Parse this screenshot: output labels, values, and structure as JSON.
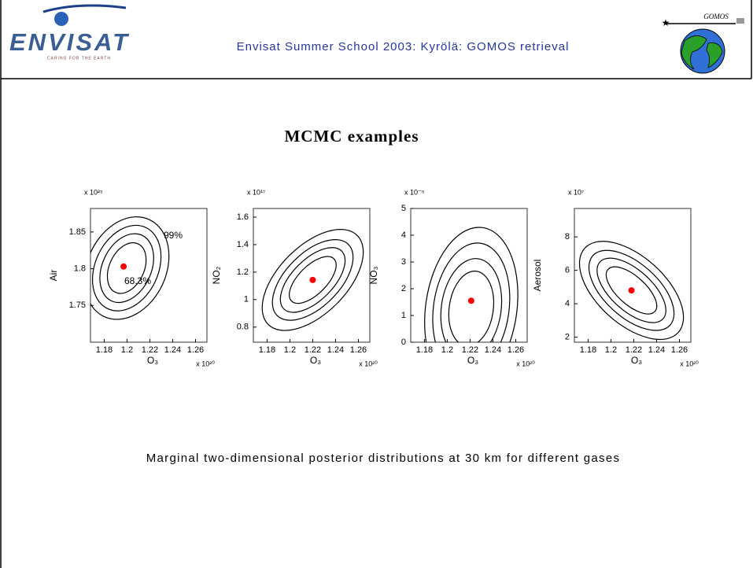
{
  "header": {
    "title": "Envisat Summer School 2003: Kyrölä: GOMOS retrieval",
    "left_logo": "ENVISAT",
    "left_logo_tagline": "CARING FOR THE EARTH",
    "right_logo": "GOMOS"
  },
  "slide_title": "MCMC examples",
  "chart_data": [
    {
      "type": "scatter",
      "xlabel": "O₃",
      "ylabel": "Air",
      "x_multiplier": "x 10²⁰",
      "y_multiplier": "x 10²⁵",
      "xlim": [
        1.168,
        1.27
      ],
      "ylim": [
        1.7,
        1.882
      ],
      "xticks": [
        1.18,
        1.2,
        1.22,
        1.24,
        1.26
      ],
      "yticks": [
        1.75,
        1.8,
        1.85
      ],
      "x": [
        1.197
      ],
      "y": [
        1.803
      ],
      "color": "#ff0000",
      "annotations": [
        "99%",
        "68.3%"
      ]
    },
    {
      "type": "scatter",
      "xlabel": "O₃",
      "ylabel": "NO₂",
      "x_multiplier": "x 10²⁰",
      "y_multiplier": "x 10¹⁷",
      "xlim": [
        1.168,
        1.27
      ],
      "ylim": [
        0.69,
        1.663
      ],
      "xticks": [
        1.18,
        1.2,
        1.22,
        1.24,
        1.26
      ],
      "yticks": [
        0.8,
        1,
        1.2,
        1.4,
        1.6
      ],
      "x": [
        1.22
      ],
      "y": [
        1.143
      ],
      "color": "#ff0000"
    },
    {
      "type": "scatter",
      "xlabel": "O₃",
      "ylabel": "NO₃",
      "x_multiplier": "x 10²⁰",
      "y_multiplier": "x 10⁻⁵",
      "xlim": [
        1.168,
        1.27
      ],
      "ylim": [
        0,
        5
      ],
      "xticks": [
        1.18,
        1.2,
        1.22,
        1.24,
        1.26
      ],
      "yticks": [
        0,
        1,
        2,
        3,
        4,
        5
      ],
      "x": [
        1.221
      ],
      "y": [
        1.55
      ],
      "color": "#ff0000"
    },
    {
      "type": "scatter",
      "xlabel": "O₃",
      "ylabel": "Aerosol",
      "x_multiplier": "x 10²⁰",
      "y_multiplier": "x 10⁷",
      "xlim": [
        1.168,
        1.27
      ],
      "ylim": [
        1.7,
        9.7
      ],
      "xticks": [
        1.18,
        1.2,
        1.22,
        1.24,
        1.26
      ],
      "yticks": [
        2,
        4,
        6,
        8
      ],
      "x": [
        1.218
      ],
      "y": [
        4.8
      ],
      "color": "#ff0000"
    }
  ],
  "caption": "Marginal two-dimensional posterior distributions at 30 km for different gases"
}
